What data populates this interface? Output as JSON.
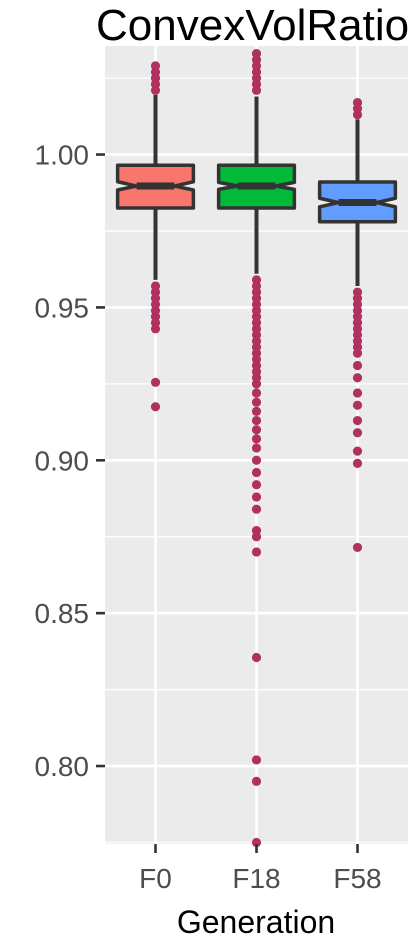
{
  "chart_data": {
    "type": "box",
    "title": "ConvexVolRatio",
    "xlabel": "Generation",
    "ylabel": "",
    "categories": [
      "F0",
      "F18",
      "F58"
    ],
    "ylim": [
      0.7745,
      1.0355
    ],
    "yticks": [
      0.8,
      0.85,
      0.9,
      0.95,
      1.0
    ],
    "ytick_labels": [
      "0.80",
      "0.85",
      "0.90",
      "0.95",
      "1.00"
    ],
    "grid": true,
    "panel_background": "#ebebeb",
    "outlier_color": "#b03060",
    "notched": true,
    "boxes": [
      {
        "category": "F0",
        "color": "#f8766d",
        "whisker_low": 0.959,
        "q1": 0.9825,
        "median": 0.9897,
        "q3": 0.9965,
        "whisker_high": 1.0195,
        "notch_low": 0.9884,
        "notch_high": 0.9911,
        "outliers": [
          1.029,
          1.027,
          1.025,
          1.023,
          1.021,
          0.957,
          0.955,
          0.953,
          0.951,
          0.949,
          0.947,
          0.945,
          0.943,
          0.9255,
          0.9175
        ]
      },
      {
        "category": "F18",
        "color": "#00ba38",
        "whisker_low": 0.961,
        "q1": 0.9825,
        "median": 0.9897,
        "q3": 0.9965,
        "whisker_high": 1.019,
        "notch_low": 0.9886,
        "notch_high": 0.9909,
        "outliers": [
          1.033,
          1.031,
          1.029,
          1.027,
          1.025,
          1.023,
          1.021,
          0.959,
          0.957,
          0.955,
          0.953,
          0.951,
          0.949,
          0.947,
          0.945,
          0.943,
          0.941,
          0.939,
          0.937,
          0.935,
          0.933,
          0.931,
          0.929,
          0.927,
          0.925,
          0.922,
          0.919,
          0.916,
          0.913,
          0.91,
          0.907,
          0.904,
          0.9,
          0.896,
          0.892,
          0.888,
          0.884,
          0.877,
          0.875,
          0.87,
          0.8355,
          0.802,
          0.795,
          0.775
        ]
      },
      {
        "category": "F58",
        "color": "#619cff",
        "whisker_low": 0.957,
        "q1": 0.978,
        "median": 0.9843,
        "q3": 0.991,
        "whisker_high": 1.0115,
        "notch_low": 0.9829,
        "notch_high": 0.9857,
        "outliers": [
          1.017,
          1.015,
          1.013,
          0.955,
          0.953,
          0.951,
          0.949,
          0.947,
          0.945,
          0.943,
          0.941,
          0.939,
          0.937,
          0.935,
          0.931,
          0.927,
          0.922,
          0.918,
          0.913,
          0.909,
          0.903,
          0.899,
          0.8715
        ]
      }
    ]
  }
}
